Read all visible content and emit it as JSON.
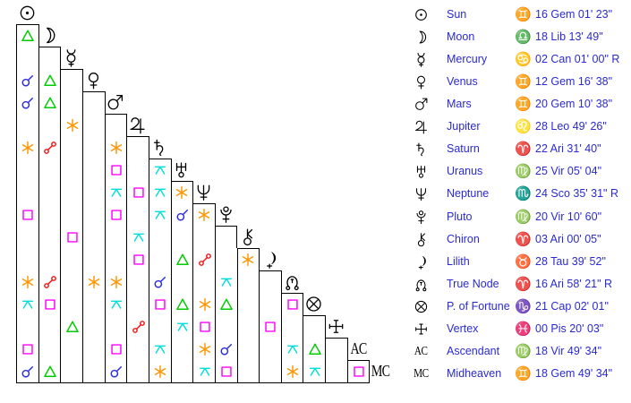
{
  "colors": {
    "text_blue": "#2a2ad0",
    "glyph_black": "#000000",
    "grid_line": "#000000",
    "aspects": {
      "con": "#2b2be0",
      "opp": "#ee1111",
      "tri": "#00cc00",
      "squ": "#ff00ff",
      "sex": "#ff9500",
      "qui": "#00dddd"
    }
  },
  "aspect_legend": {
    "con": "conjunction",
    "opp": "opposition",
    "tri": "trine",
    "squ": "square",
    "sex": "sextile",
    "qui": "quincunx"
  },
  "planets": [
    {
      "id": "sun",
      "icon": "sun-icon",
      "name": "Sun",
      "sign": "Gem",
      "sign_glyph": "♊",
      "position": "16 Gem 01' 23\""
    },
    {
      "id": "moon",
      "icon": "moon-icon",
      "name": "Moon",
      "sign": "Lib",
      "sign_glyph": "♎",
      "position": "18 Lib 13' 49\""
    },
    {
      "id": "mercury",
      "icon": "mercury-icon",
      "name": "Mercury",
      "sign": "Can",
      "sign_glyph": "♋",
      "position": "02 Can 01' 00\" R"
    },
    {
      "id": "venus",
      "icon": "venus-icon",
      "name": "Venus",
      "sign": "Gem",
      "sign_glyph": "♊",
      "position": "12 Gem 16' 38\""
    },
    {
      "id": "mars",
      "icon": "mars-icon",
      "name": "Mars",
      "sign": "Gem",
      "sign_glyph": "♊",
      "position": "20 Gem 10' 38\""
    },
    {
      "id": "jupiter",
      "icon": "jupiter-icon",
      "name": "Jupiter",
      "sign": "Leo",
      "sign_glyph": "♌",
      "position": "28 Leo 49' 26\""
    },
    {
      "id": "saturn",
      "icon": "saturn-icon",
      "name": "Saturn",
      "sign": "Ari",
      "sign_glyph": "♈",
      "position": "22 Ari 31' 40\""
    },
    {
      "id": "uranus",
      "icon": "uranus-icon",
      "name": "Uranus",
      "sign": "Vir",
      "sign_glyph": "♍",
      "position": "25 Vir 05' 04\""
    },
    {
      "id": "neptune",
      "icon": "neptune-icon",
      "name": "Neptune",
      "sign": "Sco",
      "sign_glyph": "♏",
      "position": "24 Sco 35' 31\" R"
    },
    {
      "id": "pluto",
      "icon": "pluto-icon",
      "name": "Pluto",
      "sign": "Vir",
      "sign_glyph": "♍",
      "position": "20 Vir 10' 60\""
    },
    {
      "id": "chiron",
      "icon": "chiron-icon",
      "name": "Chiron",
      "sign": "Ari",
      "sign_glyph": "♈",
      "position": "03 Ari 00' 05\""
    },
    {
      "id": "lilith",
      "icon": "lilith-icon",
      "name": "Lilith",
      "sign": "Tau",
      "sign_glyph": "♉",
      "position": "28 Tau 39' 52\""
    },
    {
      "id": "true-node",
      "icon": "true-node-icon",
      "name": "True Node",
      "sign": "Ari",
      "sign_glyph": "♈",
      "position": "16 Ari 58' 21\" R"
    },
    {
      "id": "fortune",
      "icon": "part-of-fortune-icon",
      "name": "P. of Fortune",
      "sign": "Cap",
      "sign_glyph": "♑",
      "position": "21 Cap 02' 01\""
    },
    {
      "id": "vertex",
      "icon": "vertex-icon",
      "name": "Vertex",
      "sign": "Pis",
      "sign_glyph": "♓",
      "position": "00 Pis 20' 03\""
    },
    {
      "id": "ascendant",
      "icon": "ascendant-label",
      "label": "AC",
      "name": "Ascendant",
      "sign": "Vir",
      "sign_glyph": "♍",
      "position": "18 Vir 49' 34\""
    },
    {
      "id": "midheaven",
      "icon": "midheaven-label",
      "label": "MC",
      "name": "Midheaven",
      "sign": "Gem",
      "sign_glyph": "♊",
      "position": "18 Gem 49' 34\""
    }
  ],
  "aspect_rows": [
    [],
    [
      "tri"
    ],
    [
      "",
      ""
    ],
    [
      "con",
      "tri",
      ""
    ],
    [
      "con",
      "tri",
      "",
      ""
    ],
    [
      "",
      "",
      "sex",
      "",
      ""
    ],
    [
      "sex",
      "opp",
      "",
      "",
      "sex",
      ""
    ],
    [
      "",
      "",
      "",
      "",
      "squ",
      "",
      "qui"
    ],
    [
      "",
      "",
      "",
      "",
      "qui",
      "squ",
      "qui",
      "sex"
    ],
    [
      "squ",
      "",
      "",
      "",
      "squ",
      "",
      "qui",
      "con",
      "sex"
    ],
    [
      "",
      "",
      "squ",
      "",
      "",
      "qui",
      "",
      "",
      "",
      ""
    ],
    [
      "",
      "",
      "",
      "",
      "",
      "squ",
      "",
      "tri",
      "opp",
      "",
      "sex"
    ],
    [
      "sex",
      "opp",
      "",
      "sex",
      "sex",
      "",
      "con",
      "",
      "",
      "qui",
      "",
      ""
    ],
    [
      "qui",
      "squ",
      "",
      "",
      "qui",
      "",
      "squ",
      "tri",
      "sex",
      "tri",
      "",
      "",
      "squ"
    ],
    [
      "",
      "",
      "tri",
      "",
      "",
      "opp",
      "",
      "qui",
      "squ",
      "",
      "",
      "squ",
      "",
      ""
    ],
    [
      "squ",
      "",
      "",
      "",
      "squ",
      "",
      "qui",
      "",
      "sex",
      "con",
      "",
      "",
      "qui",
      "tri",
      ""
    ],
    [
      "con",
      "tri",
      "",
      "",
      "con",
      "",
      "sex",
      "",
      "qui",
      "squ",
      "",
      "",
      "sex",
      "qui",
      "",
      "squ"
    ]
  ]
}
